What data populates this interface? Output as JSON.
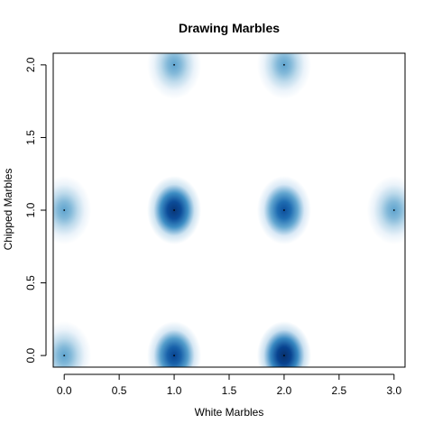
{
  "chart_data": {
    "type": "scatter",
    "title": "Drawing Marbles",
    "xlabel": "White Marbles",
    "ylabel": "Chipped Marbles",
    "xlim": [
      -0.1,
      3.1
    ],
    "ylim": [
      -0.08,
      2.08
    ],
    "x_ticks": [
      0.0,
      0.5,
      1.0,
      1.5,
      2.0,
      2.5,
      3.0
    ],
    "x_tick_labels": [
      "0.0",
      "0.5",
      "1.0",
      "1.5",
      "2.0",
      "2.5",
      "3.0"
    ],
    "y_ticks": [
      0.0,
      0.5,
      1.0,
      1.5,
      2.0
    ],
    "y_tick_labels": [
      "0.0",
      "0.5",
      "1.0",
      "1.5",
      "2.0"
    ],
    "grid": false,
    "legend": "none",
    "smoothed_density": true,
    "colors": {
      "low": "#ffffff",
      "high": "#08306b",
      "mid": "#2171b5"
    },
    "points": [
      {
        "x": 0,
        "y": 0,
        "weight": 0.45
      },
      {
        "x": 1,
        "y": 0,
        "weight": 0.85
      },
      {
        "x": 2,
        "y": 0,
        "weight": 1.0
      },
      {
        "x": 0,
        "y": 1,
        "weight": 0.45
      },
      {
        "x": 1,
        "y": 1,
        "weight": 0.95
      },
      {
        "x": 2,
        "y": 1,
        "weight": 0.8
      },
      {
        "x": 3,
        "y": 1,
        "weight": 0.45
      },
      {
        "x": 1,
        "y": 2,
        "weight": 0.45
      },
      {
        "x": 2,
        "y": 2,
        "weight": 0.45
      }
    ]
  }
}
